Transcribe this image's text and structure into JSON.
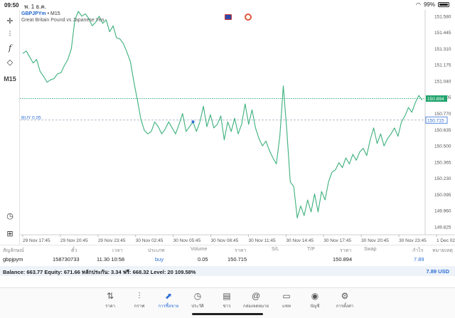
{
  "status": {
    "time": "09:50",
    "date": "พ. 1 ธ.ค.",
    "battery": "99%"
  },
  "toolbar": {
    "crosshair_icon": "crosshair-icon",
    "indicators_icon": "candlestick-icon",
    "function_icon": "function-icon",
    "objects_icon": "objects-icon",
    "timeframe": "M15",
    "history_icon": "history-icon",
    "add_icon": "add-icon"
  },
  "chart": {
    "symbol": "GBPJPYm",
    "separator": "•",
    "timeframe": "M15",
    "description": "Great Britain Pound vs Japanese Yen",
    "buy_label": "BUY 0.05",
    "bid_tag": "150.894",
    "order_tag": "150.715",
    "line_color": "#3cb07c",
    "bid_color": "#1fa36b",
    "order_color": "#2f6fd6"
  },
  "chart_data": {
    "type": "line",
    "y_ticks": [
      "151.580",
      "151.445",
      "151.310",
      "151.175",
      "151.040",
      "150.905",
      "150.770",
      "150.635",
      "150.500",
      "150.365",
      "150.230",
      "150.095",
      "149.960",
      "149.825"
    ],
    "x_ticks": [
      "29 Nov 17:45",
      "29 Nov 20:45",
      "29 Nov 23:45",
      "30 Nov 02:45",
      "30 Nov 05:45",
      "30 Nov 08:45",
      "30 Nov 11:45",
      "30 Nov 14:45",
      "30 Nov 17:45",
      "30 Nov 20:45",
      "30 Nov 23:45",
      "1 Dec 02:45"
    ],
    "ylim": [
      149.76,
      151.62
    ],
    "series": [
      {
        "values": [
          151.27,
          151.29,
          151.24,
          151.19,
          151.22,
          151.12,
          151.08,
          151.03,
          151.05,
          151.06,
          151.1,
          151.11,
          151.17,
          151.22,
          151.31,
          151.55,
          151.62,
          151.58,
          151.6,
          151.56,
          151.5,
          151.53,
          151.58,
          151.52,
          151.55,
          151.45,
          151.5,
          151.4,
          151.39,
          151.35,
          151.28,
          151.2,
          151.03,
          150.88,
          150.72,
          150.63,
          150.6,
          150.62,
          150.7,
          150.66,
          150.6,
          150.64,
          150.7,
          150.65,
          150.6,
          150.68,
          150.77,
          150.62,
          150.66,
          150.7,
          150.62,
          150.7,
          150.83,
          150.66,
          150.76,
          150.65,
          150.68,
          150.75,
          150.55,
          150.7,
          150.62,
          150.73,
          150.6,
          150.68,
          150.85,
          150.68,
          150.8,
          150.65,
          150.56,
          150.5,
          150.54,
          150.46,
          150.4,
          150.35,
          150.58,
          151.0,
          150.63,
          150.2,
          150.16,
          149.9,
          150.0,
          149.92,
          150.05,
          149.95,
          150.1,
          149.95,
          150.12,
          150.05,
          150.2,
          150.28,
          150.3,
          150.36,
          150.32,
          150.4,
          150.35,
          150.43,
          150.38,
          150.45,
          150.48,
          150.42,
          150.55,
          150.65,
          150.52,
          150.6,
          150.5,
          150.56,
          150.6,
          150.65,
          150.58,
          150.7,
          150.75,
          150.82,
          150.78,
          150.86,
          150.92,
          150.88
        ]
      }
    ],
    "order_level": 150.715,
    "current_bid": 150.894,
    "marker": {
      "x_index": 49,
      "y": 150.7
    },
    "grid": false
  },
  "table": {
    "headers": {
      "symbol": "สัญลักษณ์",
      "ticket": "ตั๋ว",
      "time": "เวลา",
      "type": "ประเภท",
      "volume": "Volume",
      "price": "ราคา",
      "sl": "S/L",
      "tp": "T/P",
      "price2": "ราคา",
      "swap": "Swap",
      "profit": "กำไร",
      "note": "หมายเหตุ"
    },
    "row": {
      "symbol": "gbpjpym",
      "ticket": "158730733",
      "time": "11.30 10:58",
      "type": "buy",
      "volume": "0.05",
      "price": "150.715",
      "price2": "150.894",
      "profit": "7.89"
    },
    "balance_text": "Balance: 663.77 Equity: 671.66 หลักประกัน: 3.34 ฟรี: 668.32 Level: 20 109.58%",
    "total": "7.89",
    "currency": "USD"
  },
  "tabs": [
    {
      "label": "ราคา",
      "icon": "quotes-icon"
    },
    {
      "label": "กราฟ",
      "icon": "chart-icon"
    },
    {
      "label": "การซื้อขาย",
      "icon": "trade-icon"
    },
    {
      "label": "ประวัติ",
      "icon": "history-icon"
    },
    {
      "label": "ข่าว",
      "icon": "news-icon"
    },
    {
      "label": "กล่องจดหมาย",
      "icon": "mailbox-icon"
    },
    {
      "label": "แชท",
      "icon": "chat-icon"
    },
    {
      "label": "บัญชี",
      "icon": "account-icon"
    },
    {
      "label": "การตั้งค่า",
      "icon": "settings-icon"
    }
  ]
}
